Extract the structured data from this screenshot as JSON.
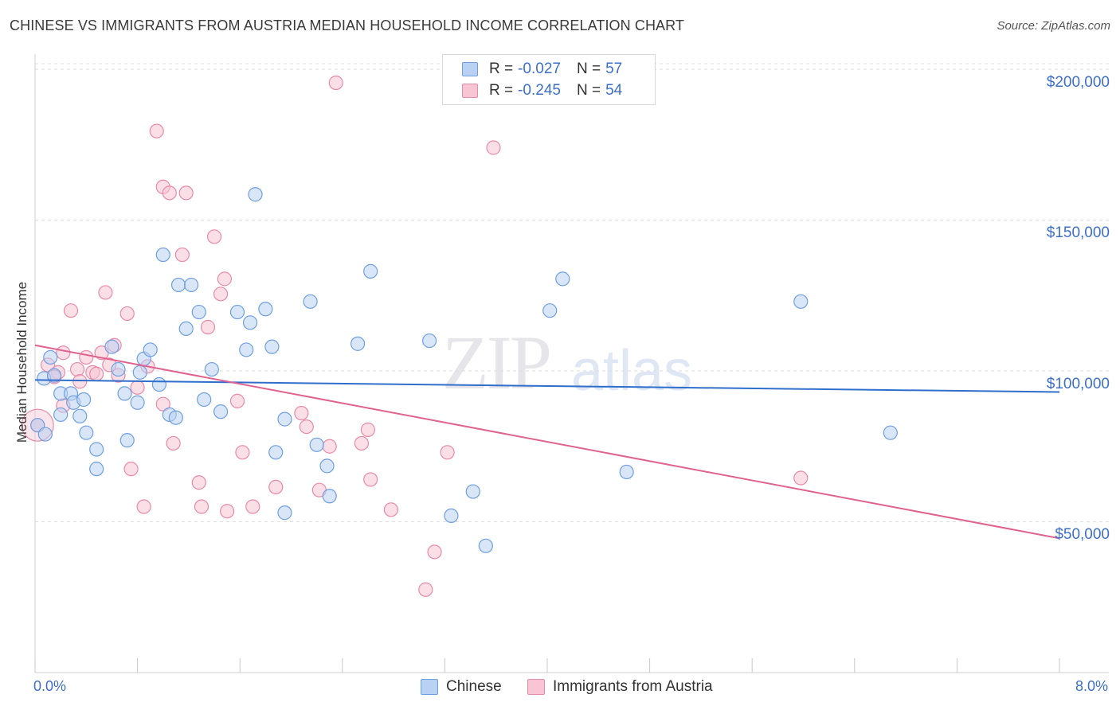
{
  "title": "CHINESE VS IMMIGRANTS FROM AUSTRIA MEDIAN HOUSEHOLD INCOME CORRELATION CHART",
  "source": "Source: ZipAtlas.com",
  "watermark": {
    "zip": "ZIP",
    "atlas": "atlas"
  },
  "legend": {
    "chinese": {
      "r_label": "R =",
      "r_value": "-0.027",
      "n_label": "N =",
      "n_value": "57"
    },
    "austria": {
      "r_label": "R =",
      "r_value": "-0.245",
      "n_label": "N =",
      "n_value": "54"
    }
  },
  "colors": {
    "chinese_fill": "#b9d1f3",
    "chinese_stroke": "#6f9fe0",
    "chinese_line": "#2f6fcb",
    "austria_fill": "#f7c5d4",
    "austria_stroke": "#e98aa8",
    "austria_line": "#e0628f",
    "tick_text": "#3d6fc9",
    "grid": "#dddddd"
  },
  "chart_data": {
    "type": "scatter",
    "title": "CHINESE VS IMMIGRANTS FROM AUSTRIA MEDIAN HOUSEHOLD INCOME CORRELATION CHART",
    "xlabel": "",
    "ylabel": "Median Household Income",
    "xlim": [
      0,
      8
    ],
    "ylim": [
      0,
      205000
    ],
    "x_tick_labels": [
      "0.0%",
      "8.0%"
    ],
    "y_ticks": [
      50000,
      100000,
      150000,
      200000
    ],
    "y_tick_labels": [
      "$50,000",
      "$100,000",
      "$150,000",
      "$200,000"
    ],
    "grid": true,
    "legend_position": "top-center",
    "series": [
      {
        "name": "Chinese",
        "color": "#6f9fe0",
        "trend": {
          "x": [
            0,
            8
          ],
          "y": [
            97000,
            93000
          ]
        },
        "points": [
          [
            0.02,
            82000
          ],
          [
            0.07,
            97500
          ],
          [
            0.12,
            104500
          ],
          [
            0.15,
            98500
          ],
          [
            0.2,
            92500
          ],
          [
            0.2,
            85500
          ],
          [
            0.28,
            92500
          ],
          [
            0.3,
            89500
          ],
          [
            0.35,
            85000
          ],
          [
            0.38,
            90500
          ],
          [
            0.4,
            79500
          ],
          [
            0.48,
            74000
          ],
          [
            0.48,
            67500
          ],
          [
            0.6,
            108000
          ],
          [
            0.65,
            100500
          ],
          [
            0.7,
            92500
          ],
          [
            0.72,
            77000
          ],
          [
            0.8,
            89500
          ],
          [
            0.82,
            99500
          ],
          [
            0.85,
            104000
          ],
          [
            0.9,
            107000
          ],
          [
            0.97,
            95500
          ],
          [
            1.0,
            138500
          ],
          [
            1.05,
            85500
          ],
          [
            1.1,
            84500
          ],
          [
            1.12,
            128500
          ],
          [
            1.18,
            114000
          ],
          [
            1.22,
            128500
          ],
          [
            1.28,
            119500
          ],
          [
            1.32,
            90500
          ],
          [
            1.38,
            100500
          ],
          [
            1.45,
            86500
          ],
          [
            1.58,
            119500
          ],
          [
            1.65,
            107000
          ],
          [
            1.68,
            116000
          ],
          [
            1.72,
            158500
          ],
          [
            1.8,
            120500
          ],
          [
            1.85,
            108000
          ],
          [
            1.88,
            73000
          ],
          [
            1.95,
            84000
          ],
          [
            1.95,
            53000
          ],
          [
            2.15,
            123000
          ],
          [
            2.2,
            75500
          ],
          [
            2.28,
            68500
          ],
          [
            2.3,
            58500
          ],
          [
            2.52,
            109000
          ],
          [
            2.62,
            133000
          ],
          [
            3.08,
            110000
          ],
          [
            3.25,
            52000
          ],
          [
            3.42,
            60000
          ],
          [
            3.52,
            42000
          ],
          [
            4.02,
            120000
          ],
          [
            4.12,
            130500
          ],
          [
            4.62,
            66500
          ],
          [
            5.98,
            123000
          ],
          [
            6.68,
            79500
          ],
          [
            0.08,
            79000
          ]
        ]
      },
      {
        "name": "Immigrants from Austria",
        "color": "#e98aa8",
        "trend": {
          "x": [
            0,
            8
          ],
          "y": [
            108500,
            44500
          ]
        },
        "points": [
          [
            0.02,
            82000
          ],
          [
            0.1,
            102000
          ],
          [
            0.18,
            99500
          ],
          [
            0.22,
            106000
          ],
          [
            0.22,
            88500
          ],
          [
            0.28,
            120000
          ],
          [
            0.33,
            100500
          ],
          [
            0.35,
            96500
          ],
          [
            0.4,
            104500
          ],
          [
            0.45,
            99500
          ],
          [
            0.48,
            99000
          ],
          [
            0.52,
            106000
          ],
          [
            0.55,
            126000
          ],
          [
            0.58,
            102000
          ],
          [
            0.62,
            108500
          ],
          [
            0.65,
            98500
          ],
          [
            0.72,
            119000
          ],
          [
            0.75,
            67500
          ],
          [
            0.8,
            94500
          ],
          [
            0.85,
            55000
          ],
          [
            0.88,
            101500
          ],
          [
            0.95,
            179500
          ],
          [
            1.0,
            161000
          ],
          [
            1.0,
            89000
          ],
          [
            1.05,
            159000
          ],
          [
            1.08,
            76000
          ],
          [
            1.15,
            138500
          ],
          [
            1.18,
            159000
          ],
          [
            1.28,
            63000
          ],
          [
            1.3,
            55000
          ],
          [
            1.35,
            114500
          ],
          [
            1.4,
            144500
          ],
          [
            1.45,
            125500
          ],
          [
            1.48,
            130500
          ],
          [
            1.5,
            53500
          ],
          [
            1.58,
            90000
          ],
          [
            1.62,
            73000
          ],
          [
            1.7,
            55000
          ],
          [
            1.88,
            61500
          ],
          [
            2.08,
            86000
          ],
          [
            2.12,
            81500
          ],
          [
            2.22,
            60500
          ],
          [
            2.3,
            75000
          ],
          [
            2.35,
            195500
          ],
          [
            2.55,
            76000
          ],
          [
            2.6,
            80500
          ],
          [
            2.62,
            64000
          ],
          [
            2.78,
            54000
          ],
          [
            3.05,
            27500
          ],
          [
            3.12,
            40000
          ],
          [
            3.22,
            73000
          ],
          [
            3.58,
            174000
          ],
          [
            5.98,
            64500
          ],
          [
            0.15,
            98000
          ]
        ]
      }
    ]
  }
}
